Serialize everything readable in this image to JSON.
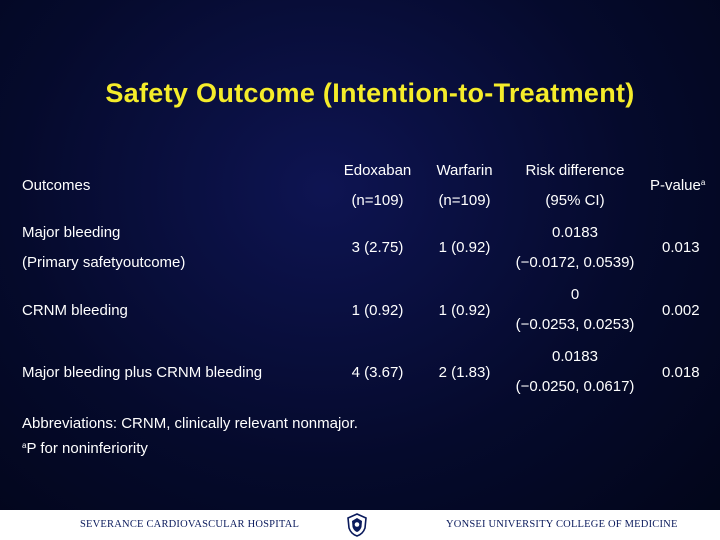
{
  "title": "Safety Outcome (Intention-to-Treatment)",
  "table": {
    "header": {
      "outcomes": "Outcomes",
      "edoxaban": "Edoxaban",
      "edoxaban_n": "(n=109)",
      "warfarin": "Warfarin",
      "warfarin_n": "(n=109)",
      "risk_difference": "Risk difference",
      "risk_ci": "(95% CI)",
      "pvalue": "P-value",
      "pvalue_sup": "a"
    },
    "rows": [
      {
        "outcome": "Major bleeding",
        "outcome_sub": "(Primary safetyoutcome)",
        "edoxaban": "3 (2.75)",
        "warfarin": "1 (0.92)",
        "risk_diff": "0.0183",
        "risk_ci": "(−0.0172, 0.0539)",
        "pvalue": "0.013"
      },
      {
        "outcome": "CRNM bleeding",
        "edoxaban": "1 (0.92)",
        "warfarin": "1 (0.92)",
        "risk_diff": "0",
        "risk_ci": "(−0.0253, 0.0253)",
        "pvalue": "0.002"
      },
      {
        "outcome": "Major bleeding plus CRNM bleeding",
        "edoxaban": "4 (3.67)",
        "warfarin": "2 (1.83)",
        "risk_diff": "0.0183",
        "risk_ci": "(−0.0250, 0.0617)",
        "pvalue": "0.018"
      }
    ]
  },
  "notes": {
    "abbreviations": "Abbreviations: CRNM, clinically relevant nonmajor.",
    "footnote_sup": "a",
    "footnote": "P for noninferiority"
  },
  "footer": {
    "left": "SEVERANCE CARDIOVASCULAR HOSPITAL",
    "right": "YONSEI UNIVERSITY COLLEGE OF MEDICINE"
  },
  "colors": {
    "title": "#f5ec2a",
    "background": "#050a2c",
    "footer_text": "#0a1a5c"
  }
}
